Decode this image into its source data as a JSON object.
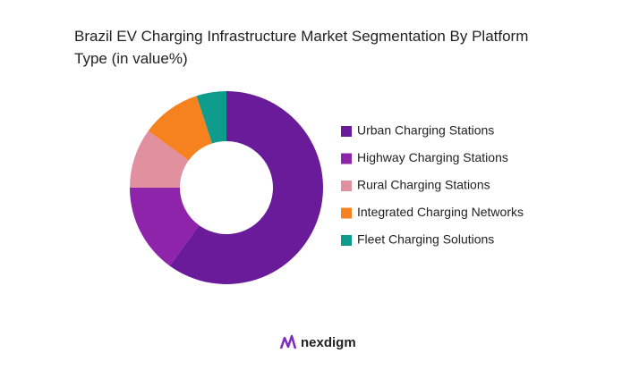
{
  "chart_data": {
    "type": "donut",
    "title": "Brazil EV Charging Infrastructure Market Segmentation By Platform Type (in value%)",
    "categories": [
      "Urban Charging Stations",
      "Highway Charging Stations",
      "Rural Charging Stations",
      "Integrated Charging Networks",
      "Fleet Charging Solutions"
    ],
    "values": [
      60,
      15,
      10,
      10,
      5
    ],
    "colors": [
      "#6a1b9a",
      "#8e24aa",
      "#e0909f",
      "#f5821f",
      "#0e9c8c"
    ],
    "legend": "right"
  },
  "brand": "nexdigm"
}
